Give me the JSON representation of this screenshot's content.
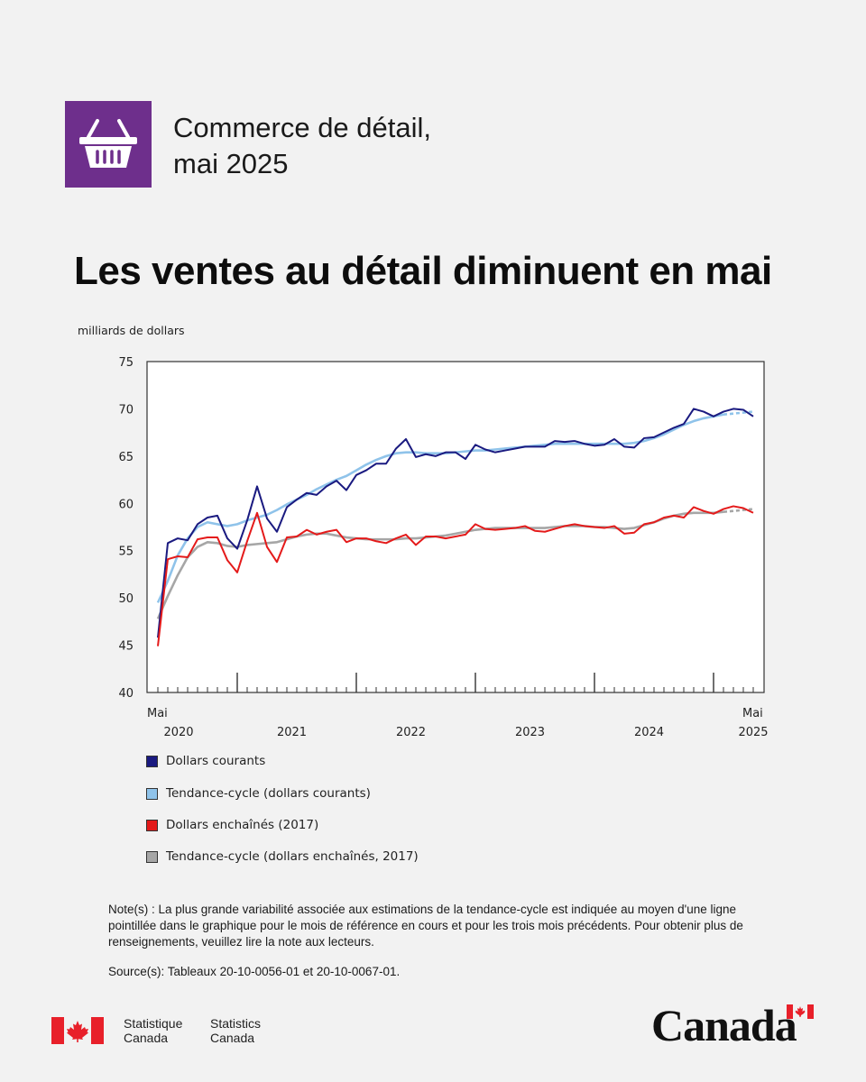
{
  "header": {
    "icon": "shopping-basket-icon",
    "icon_bg": "#6e2f8c",
    "title_line1": "Commerce de détail,",
    "title_line2": "mai 2025"
  },
  "headline": "Les ventes au détail diminuent en mai",
  "chart_data": {
    "type": "line",
    "ylabel": "milliards de dollars",
    "ylim": [
      40,
      75
    ],
    "yticks": [
      40,
      45,
      50,
      55,
      60,
      65,
      70,
      75
    ],
    "x_start_label": "Mai",
    "x_end_label": "Mai",
    "year_labels": [
      "2020",
      "2021",
      "2022",
      "2023",
      "2024",
      "2025"
    ],
    "months": [
      "2020-05",
      "2020-06",
      "2020-07",
      "2020-08",
      "2020-09",
      "2020-10",
      "2020-11",
      "2020-12",
      "2021-01",
      "2021-02",
      "2021-03",
      "2021-04",
      "2021-05",
      "2021-06",
      "2021-07",
      "2021-08",
      "2021-09",
      "2021-10",
      "2021-11",
      "2021-12",
      "2022-01",
      "2022-02",
      "2022-03",
      "2022-04",
      "2022-05",
      "2022-06",
      "2022-07",
      "2022-08",
      "2022-09",
      "2022-10",
      "2022-11",
      "2022-12",
      "2023-01",
      "2023-02",
      "2023-03",
      "2023-04",
      "2023-05",
      "2023-06",
      "2023-07",
      "2023-08",
      "2023-09",
      "2023-10",
      "2023-11",
      "2023-12",
      "2024-01",
      "2024-02",
      "2024-03",
      "2024-04",
      "2024-05",
      "2024-06",
      "2024-07",
      "2024-08",
      "2024-09",
      "2024-10",
      "2024-11",
      "2024-12",
      "2025-01",
      "2025-02",
      "2025-03",
      "2025-04",
      "2025-05"
    ],
    "dashed_from_month": "2025-02",
    "series": [
      {
        "name": "Dollars courants",
        "color": "#1a1a80",
        "values": [
          45.8,
          55.8,
          56.3,
          56.1,
          57.8,
          58.5,
          58.7,
          56.3,
          55.2,
          58.2,
          61.8,
          58.4,
          57.0,
          59.6,
          60.4,
          61.1,
          60.9,
          61.8,
          62.4,
          61.4,
          63.0,
          63.5,
          64.2,
          64.2,
          65.8,
          66.8,
          64.9,
          65.2,
          65.0,
          65.4,
          65.4,
          64.7,
          66.2,
          65.7,
          65.4,
          65.6,
          65.8,
          66.0,
          66.0,
          66.0,
          66.6,
          66.5,
          66.6,
          66.3,
          66.1,
          66.2,
          66.8,
          66.0,
          65.9,
          66.9,
          67.0,
          67.5,
          68.0,
          68.4,
          70.0,
          69.7,
          69.2,
          69.7,
          70.0,
          69.9,
          69.2
        ]
      },
      {
        "name": "Tendance-cycle (dollars courants)",
        "color": "#8fc3ea",
        "values": [
          49.5,
          51.8,
          54.5,
          56.3,
          57.5,
          58.0,
          57.8,
          57.6,
          57.8,
          58.2,
          58.5,
          58.8,
          59.3,
          59.9,
          60.4,
          60.9,
          61.5,
          62.0,
          62.5,
          62.9,
          63.5,
          64.1,
          64.6,
          65.0,
          65.3,
          65.4,
          65.4,
          65.3,
          65.3,
          65.3,
          65.4,
          65.5,
          65.6,
          65.6,
          65.7,
          65.8,
          65.9,
          66.0,
          66.1,
          66.2,
          66.3,
          66.3,
          66.3,
          66.3,
          66.3,
          66.3,
          66.3,
          66.3,
          66.4,
          66.6,
          66.9,
          67.3,
          67.8,
          68.3,
          68.7,
          69.0,
          69.2,
          69.4,
          69.5,
          69.6,
          69.7
        ]
      },
      {
        "name": "Dollars enchaînés (2017)",
        "color": "#e41a1a",
        "values": [
          44.9,
          54.1,
          54.4,
          54.3,
          56.2,
          56.4,
          56.4,
          54.0,
          52.7,
          56.0,
          59.0,
          55.4,
          53.8,
          56.4,
          56.5,
          57.2,
          56.7,
          57.0,
          57.2,
          55.9,
          56.3,
          56.3,
          56.0,
          55.8,
          56.3,
          56.7,
          55.6,
          56.5,
          56.5,
          56.3,
          56.5,
          56.7,
          57.8,
          57.3,
          57.2,
          57.3,
          57.4,
          57.6,
          57.1,
          57.0,
          57.3,
          57.6,
          57.8,
          57.6,
          57.5,
          57.4,
          57.6,
          56.8,
          56.9,
          57.8,
          58.0,
          58.5,
          58.7,
          58.5,
          59.6,
          59.2,
          58.9,
          59.4,
          59.7,
          59.5,
          59.0
        ]
      },
      {
        "name": "Tendance-cycle (dollars enchaînés, 2017)",
        "color": "#a6a6a6",
        "values": [
          47.8,
          50.2,
          52.4,
          54.3,
          55.4,
          55.9,
          55.8,
          55.5,
          55.4,
          55.6,
          55.7,
          55.8,
          55.9,
          56.2,
          56.5,
          56.7,
          56.8,
          56.8,
          56.6,
          56.4,
          56.3,
          56.2,
          56.2,
          56.2,
          56.2,
          56.3,
          56.3,
          56.4,
          56.5,
          56.6,
          56.8,
          57.0,
          57.2,
          57.3,
          57.4,
          57.4,
          57.4,
          57.4,
          57.4,
          57.4,
          57.5,
          57.6,
          57.6,
          57.6,
          57.5,
          57.5,
          57.4,
          57.3,
          57.4,
          57.7,
          58.0,
          58.4,
          58.7,
          58.9,
          59.0,
          59.0,
          59.0,
          59.1,
          59.2,
          59.3,
          59.4
        ]
      }
    ]
  },
  "note": "Note(s) : La plus grande variabilité associée aux estimations de la tendance-cycle est indiquée au moyen d'une ligne pointillée dans le graphique pour le mois de référence en cours et pour les trois mois précédents. Pour obtenir plus de renseignements, veuillez lire la note aux lecteurs.",
  "source": "Source(s): Tableaux 20-10-0056-01 et 20-10-0067-01.",
  "footer": {
    "org_fr_line1": "Statistique",
    "org_fr_line2": "Canada",
    "org_en_line1": "Statistics",
    "org_en_line2": "Canada",
    "wordmark": "Canada",
    "flag_red": "#e8202a"
  }
}
